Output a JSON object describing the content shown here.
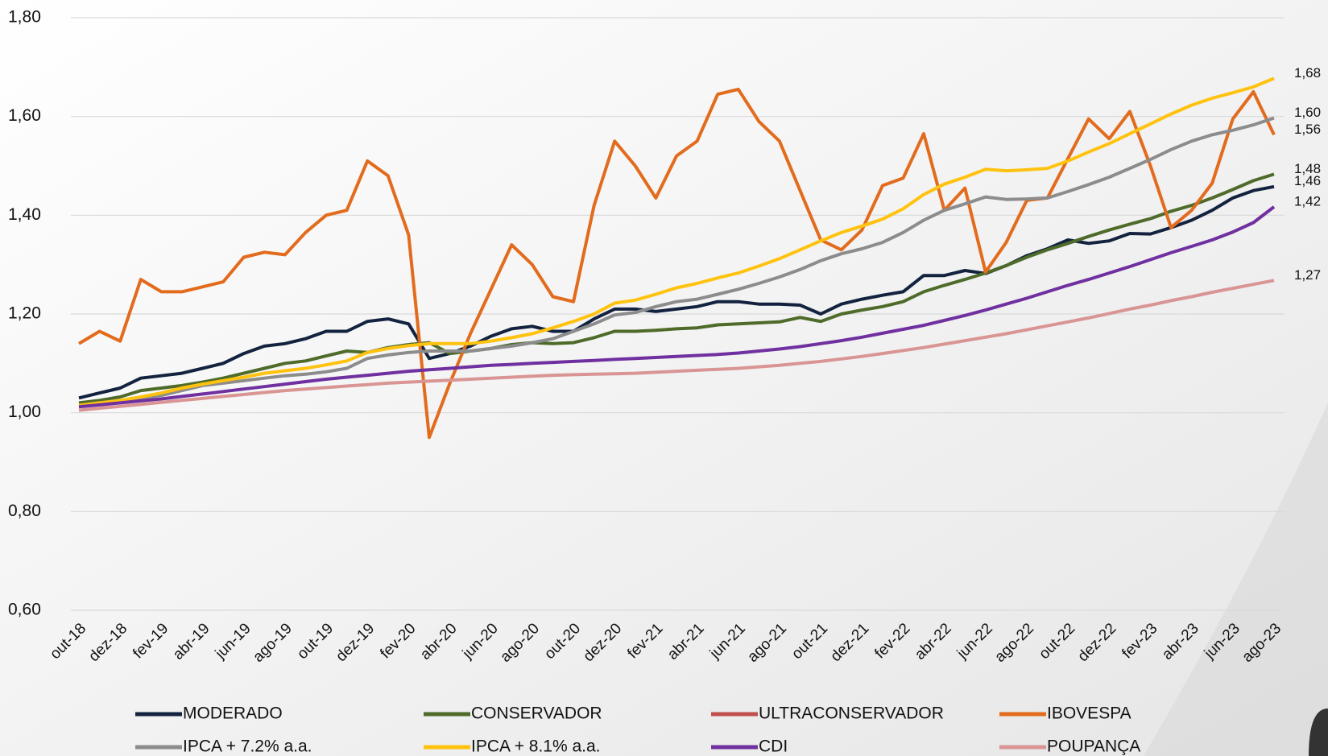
{
  "chart_data": {
    "type": "line",
    "categories": [
      "out-18",
      null,
      "dez-18",
      null,
      "fev-19",
      null,
      "abr-19",
      null,
      "jun-19",
      null,
      "ago-19",
      null,
      "out-19",
      null,
      "dez-19",
      null,
      "fev-20",
      null,
      "abr-20",
      null,
      "jun-20",
      null,
      "ago-20",
      null,
      "out-20",
      null,
      "dez-20",
      null,
      "fev-21",
      null,
      "abr-21",
      null,
      "jun-21",
      null,
      "ago-21",
      null,
      "out-21",
      null,
      "dez-21",
      null,
      "fev-22",
      null,
      "abr-22",
      null,
      "jun-22",
      null,
      "ago-22",
      null,
      "out-22",
      null,
      "dez-22",
      null,
      "fev-23",
      null,
      "abr-23",
      null,
      "jun-23",
      null,
      "ago-23"
    ],
    "ylim": [
      0.6,
      1.8
    ],
    "yticks": [
      {
        "value": 0.6,
        "label": "0,60"
      },
      {
        "value": 0.8,
        "label": "0,80"
      },
      {
        "value": 1.0,
        "label": "1,00"
      },
      {
        "value": 1.2,
        "label": "1,20"
      },
      {
        "value": 1.4,
        "label": "1,40"
      },
      {
        "value": 1.6,
        "label": "1,60"
      },
      {
        "value": 1.8,
        "label": "1,80"
      }
    ],
    "grid": true,
    "legend": "bottom",
    "series": [
      {
        "name": "MODERADO",
        "color": "#13233f",
        "values": [
          1.03,
          1.04,
          1.05,
          1.07,
          1.075,
          1.08,
          1.09,
          1.1,
          1.12,
          1.135,
          1.14,
          1.15,
          1.165,
          1.165,
          1.185,
          1.19,
          1.18,
          1.11,
          1.12,
          1.135,
          1.155,
          1.17,
          1.175,
          1.165,
          1.165,
          1.19,
          1.21,
          1.21,
          1.205,
          1.21,
          1.215,
          1.225,
          1.225,
          1.22,
          1.22,
          1.218,
          1.2,
          1.22,
          1.23,
          1.238,
          1.245,
          1.278,
          1.278,
          1.288,
          1.282,
          1.298,
          1.318,
          1.332,
          1.35,
          1.343,
          1.348,
          1.363,
          1.362,
          1.375,
          1.39,
          1.41,
          1.435,
          1.45,
          1.458
        ],
        "value_labels": [
          null,
          null,
          null,
          null,
          null,
          null,
          null,
          null,
          null,
          null,
          null,
          null,
          null,
          null,
          null,
          null,
          null,
          null,
          null,
          null,
          null,
          null,
          null,
          null,
          null,
          null,
          null,
          null,
          null,
          null,
          null,
          null,
          null,
          null,
          null,
          null,
          null,
          null,
          null,
          null,
          null,
          null,
          null,
          null,
          null,
          null,
          null,
          null,
          null,
          null,
          null,
          null,
          null,
          null,
          null,
          null,
          null,
          null,
          "1,46"
        ]
      },
      {
        "name": "CONSERVADOR",
        "color": "#4e6b2a",
        "values": [
          1.02,
          1.025,
          1.032,
          1.045,
          1.05,
          1.055,
          1.062,
          1.07,
          1.08,
          1.09,
          1.1,
          1.105,
          1.115,
          1.125,
          1.122,
          1.132,
          1.138,
          1.142,
          1.12,
          1.125,
          1.13,
          1.138,
          1.142,
          1.14,
          1.142,
          1.152,
          1.165,
          1.165,
          1.167,
          1.17,
          1.172,
          1.178,
          1.18,
          1.182,
          1.184,
          1.193,
          1.185,
          1.2,
          1.208,
          1.215,
          1.225,
          1.245,
          1.258,
          1.27,
          1.283,
          1.298,
          1.315,
          1.33,
          1.343,
          1.357,
          1.37,
          1.382,
          1.393,
          1.408,
          1.42,
          1.435,
          1.452,
          1.47,
          1.483
        ],
        "value_labels": [
          null,
          null,
          null,
          null,
          null,
          null,
          null,
          null,
          null,
          null,
          null,
          null,
          null,
          null,
          null,
          null,
          null,
          null,
          null,
          null,
          null,
          null,
          null,
          null,
          null,
          null,
          null,
          null,
          null,
          null,
          null,
          null,
          null,
          null,
          null,
          null,
          null,
          null,
          null,
          null,
          null,
          null,
          null,
          null,
          null,
          null,
          null,
          null,
          null,
          null,
          null,
          null,
          null,
          null,
          null,
          null,
          null,
          null,
          "1,48"
        ]
      },
      {
        "name": "ULTRACONSERVADOR",
        "color": "#c0504d",
        "values": [
          null,
          null,
          null,
          null,
          null,
          null,
          null,
          null,
          null,
          null,
          null,
          null,
          null,
          null,
          null,
          null,
          null,
          null,
          null,
          null,
          null,
          null,
          null,
          null,
          null,
          null,
          null,
          null,
          null,
          null,
          null,
          null,
          null,
          null,
          null,
          null,
          null,
          null,
          null,
          null,
          null,
          null,
          null,
          null,
          null,
          null,
          null,
          null,
          null,
          null,
          null,
          null,
          null,
          null,
          null,
          null,
          null,
          null,
          null
        ]
      },
      {
        "name": "IBOVESPA",
        "color": "#e26b1d",
        "values": [
          1.14,
          1.165,
          1.145,
          1.27,
          1.245,
          1.245,
          1.255,
          1.265,
          1.315,
          1.325,
          1.32,
          1.365,
          1.4,
          1.41,
          1.51,
          1.48,
          1.36,
          0.95,
          1.06,
          1.16,
          1.25,
          1.34,
          1.3,
          1.235,
          1.225,
          1.42,
          1.55,
          1.5,
          1.435,
          1.52,
          1.55,
          1.645,
          1.655,
          1.59,
          1.55,
          1.45,
          1.35,
          1.33,
          1.37,
          1.46,
          1.475,
          1.565,
          1.41,
          1.455,
          1.285,
          1.345,
          1.43,
          1.435,
          1.515,
          1.595,
          1.555,
          1.61,
          1.5,
          1.375,
          1.41,
          1.465,
          1.595,
          1.65,
          1.563
        ],
        "value_labels": [
          null,
          null,
          null,
          null,
          null,
          null,
          null,
          null,
          null,
          null,
          null,
          null,
          null,
          null,
          null,
          null,
          null,
          null,
          null,
          null,
          null,
          null,
          null,
          null,
          null,
          null,
          null,
          null,
          null,
          null,
          null,
          null,
          null,
          null,
          null,
          null,
          null,
          null,
          null,
          null,
          null,
          null,
          null,
          null,
          null,
          null,
          null,
          null,
          null,
          null,
          null,
          null,
          null,
          null,
          null,
          null,
          null,
          null,
          "1,56"
        ]
      },
      {
        "name": "IPCA + 7.2% a.a.",
        "color": "#8c8c8c",
        "values": [
          1.015,
          1.02,
          1.025,
          1.03,
          1.035,
          1.045,
          1.055,
          1.06,
          1.065,
          1.07,
          1.075,
          1.078,
          1.083,
          1.09,
          1.11,
          1.117,
          1.122,
          1.125,
          1.125,
          1.125,
          1.13,
          1.135,
          1.142,
          1.15,
          1.165,
          1.18,
          1.198,
          1.203,
          1.215,
          1.225,
          1.23,
          1.24,
          1.25,
          1.262,
          1.275,
          1.29,
          1.308,
          1.322,
          1.332,
          1.345,
          1.365,
          1.39,
          1.41,
          1.423,
          1.437,
          1.432,
          1.433,
          1.435,
          1.448,
          1.462,
          1.477,
          1.495,
          1.513,
          1.533,
          1.55,
          1.563,
          1.572,
          1.583,
          1.597
        ],
        "value_labels": [
          null,
          null,
          null,
          null,
          null,
          null,
          null,
          null,
          null,
          null,
          null,
          null,
          null,
          null,
          null,
          null,
          null,
          null,
          null,
          null,
          null,
          null,
          null,
          null,
          null,
          null,
          null,
          null,
          null,
          null,
          null,
          null,
          null,
          null,
          null,
          null,
          null,
          null,
          null,
          null,
          null,
          null,
          null,
          null,
          null,
          null,
          null,
          null,
          null,
          null,
          null,
          null,
          null,
          null,
          null,
          null,
          null,
          null,
          "1,60"
        ]
      },
      {
        "name": "IPCA + 8.1% a.a.",
        "color": "#ffc20e",
        "values": [
          1.015,
          1.02,
          1.025,
          1.032,
          1.04,
          1.05,
          1.058,
          1.065,
          1.072,
          1.08,
          1.085,
          1.09,
          1.097,
          1.105,
          1.122,
          1.13,
          1.136,
          1.14,
          1.14,
          1.14,
          1.145,
          1.152,
          1.16,
          1.172,
          1.185,
          1.2,
          1.222,
          1.228,
          1.24,
          1.253,
          1.262,
          1.273,
          1.283,
          1.297,
          1.312,
          1.33,
          1.348,
          1.365,
          1.378,
          1.392,
          1.413,
          1.442,
          1.463,
          1.477,
          1.493,
          1.49,
          1.492,
          1.495,
          1.51,
          1.528,
          1.545,
          1.565,
          1.585,
          1.605,
          1.623,
          1.637,
          1.648,
          1.66,
          1.677
        ],
        "value_labels": [
          null,
          null,
          null,
          null,
          null,
          null,
          null,
          null,
          null,
          null,
          null,
          null,
          null,
          null,
          null,
          null,
          null,
          null,
          null,
          null,
          null,
          null,
          null,
          null,
          null,
          null,
          null,
          null,
          null,
          null,
          null,
          null,
          null,
          null,
          null,
          null,
          null,
          null,
          null,
          null,
          null,
          null,
          null,
          null,
          null,
          null,
          null,
          null,
          null,
          null,
          null,
          null,
          null,
          null,
          null,
          null,
          null,
          null,
          "1,68"
        ]
      },
      {
        "name": "CDI",
        "color": "#7030a0",
        "values": [
          1.012,
          1.016,
          1.02,
          1.024,
          1.028,
          1.033,
          1.038,
          1.043,
          1.048,
          1.053,
          1.058,
          1.063,
          1.068,
          1.072,
          1.076,
          1.08,
          1.084,
          1.087,
          1.09,
          1.093,
          1.096,
          1.098,
          1.1,
          1.102,
          1.104,
          1.106,
          1.108,
          1.11,
          1.112,
          1.114,
          1.116,
          1.118,
          1.121,
          1.125,
          1.129,
          1.134,
          1.14,
          1.146,
          1.153,
          1.161,
          1.169,
          1.177,
          1.187,
          1.197,
          1.208,
          1.22,
          1.232,
          1.245,
          1.258,
          1.27,
          1.283,
          1.296,
          1.31,
          1.324,
          1.337,
          1.35,
          1.366,
          1.385,
          1.417
        ],
        "value_labels": [
          null,
          null,
          null,
          null,
          null,
          null,
          null,
          null,
          null,
          null,
          null,
          null,
          null,
          null,
          null,
          null,
          null,
          null,
          null,
          null,
          null,
          null,
          null,
          null,
          null,
          null,
          null,
          null,
          null,
          null,
          null,
          null,
          null,
          null,
          null,
          null,
          null,
          null,
          null,
          null,
          null,
          null,
          null,
          null,
          null,
          null,
          null,
          null,
          null,
          null,
          null,
          null,
          null,
          null,
          null,
          null,
          null,
          null,
          "1,42"
        ]
      },
      {
        "name": "POUPANÇA",
        "color": "#d99594",
        "values": [
          1.005,
          1.009,
          1.013,
          1.017,
          1.021,
          1.025,
          1.029,
          1.033,
          1.037,
          1.041,
          1.045,
          1.048,
          1.051,
          1.054,
          1.057,
          1.06,
          1.062,
          1.064,
          1.066,
          1.068,
          1.07,
          1.072,
          1.074,
          1.076,
          1.077,
          1.078,
          1.079,
          1.08,
          1.082,
          1.084,
          1.086,
          1.088,
          1.09,
          1.093,
          1.096,
          1.1,
          1.104,
          1.109,
          1.114,
          1.12,
          1.126,
          1.132,
          1.139,
          1.146,
          1.153,
          1.16,
          1.168,
          1.176,
          1.184,
          1.192,
          1.201,
          1.21,
          1.218,
          1.227,
          1.235,
          1.244,
          1.252,
          1.26,
          1.268
        ],
        "value_labels": [
          null,
          null,
          null,
          null,
          null,
          null,
          null,
          null,
          null,
          null,
          null,
          null,
          null,
          null,
          null,
          null,
          null,
          null,
          null,
          null,
          null,
          null,
          null,
          null,
          null,
          null,
          null,
          null,
          null,
          null,
          null,
          null,
          null,
          null,
          null,
          null,
          null,
          null,
          null,
          null,
          null,
          null,
          null,
          null,
          null,
          null,
          null,
          null,
          null,
          null,
          null,
          null,
          null,
          null,
          null,
          null,
          null,
          null,
          "1,27"
        ]
      }
    ]
  }
}
